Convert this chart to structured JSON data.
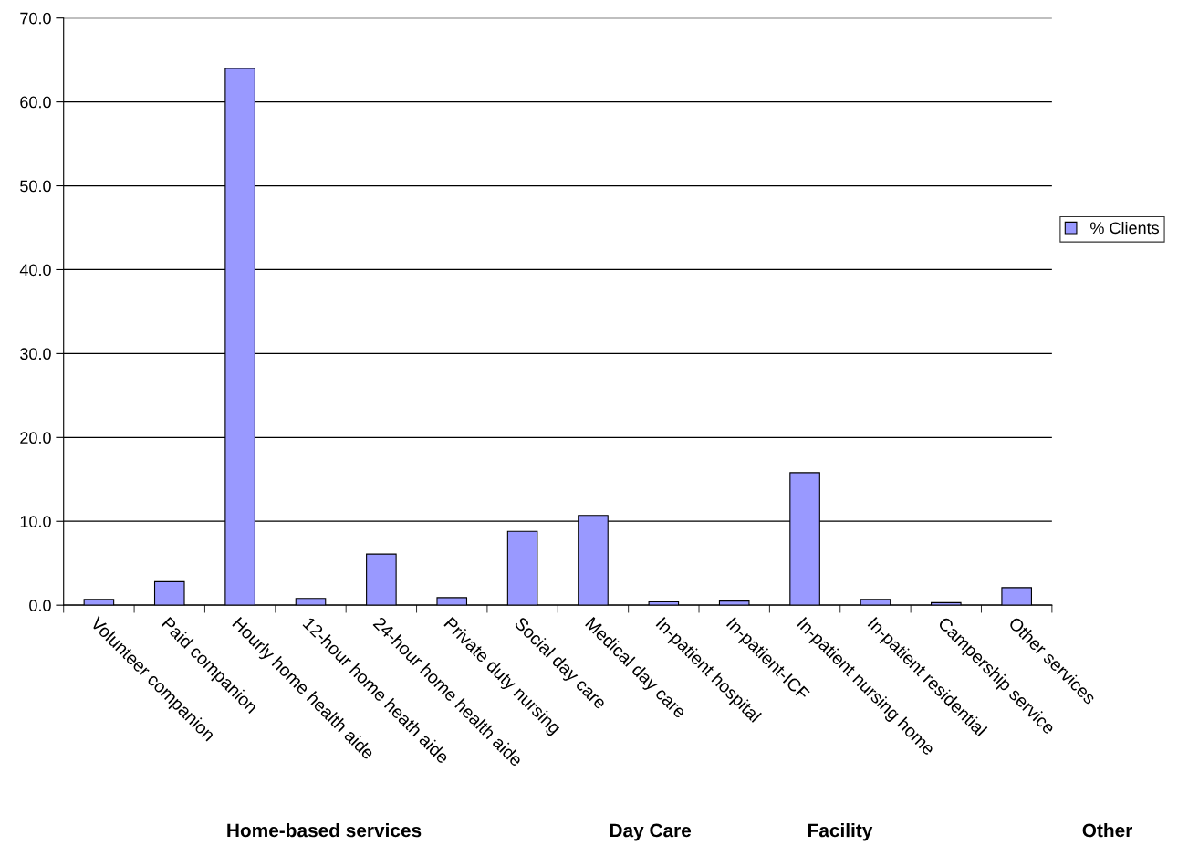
{
  "chart_data": {
    "type": "bar",
    "categories": [
      "Volunteer companion",
      "Paid companion",
      "Hourly home health aide",
      "12-hour home heath aide",
      "24-hour home health aide",
      "Private duty nursing",
      "Social day care",
      "Medical day care",
      "In-patient hospital",
      "In-patient-ICF",
      "In-patient nursing home",
      "In-patient residential",
      "Campership service",
      "Other services"
    ],
    "series": [
      {
        "name": "% Clients",
        "color": "#9999ff",
        "values": [
          0.7,
          2.8,
          64.0,
          0.8,
          6.1,
          0.9,
          8.8,
          10.7,
          0.4,
          0.5,
          15.8,
          0.7,
          0.3,
          2.1
        ]
      }
    ],
    "ylim": [
      0,
      70
    ],
    "yticks": [
      {
        "value": 0,
        "label": "0.0"
      },
      {
        "value": 10,
        "label": "10.0"
      },
      {
        "value": 20,
        "label": "20.0"
      },
      {
        "value": 30,
        "label": "30.0"
      },
      {
        "value": 40,
        "label": "40.0"
      },
      {
        "value": 50,
        "label": "50.0"
      },
      {
        "value": 60,
        "label": "60.0"
      },
      {
        "value": 70,
        "label": "70.0"
      }
    ],
    "grid": "y",
    "legend": "right",
    "annotations": [
      "Home-based services",
      "Day Care",
      "Facility",
      "Other"
    ]
  }
}
